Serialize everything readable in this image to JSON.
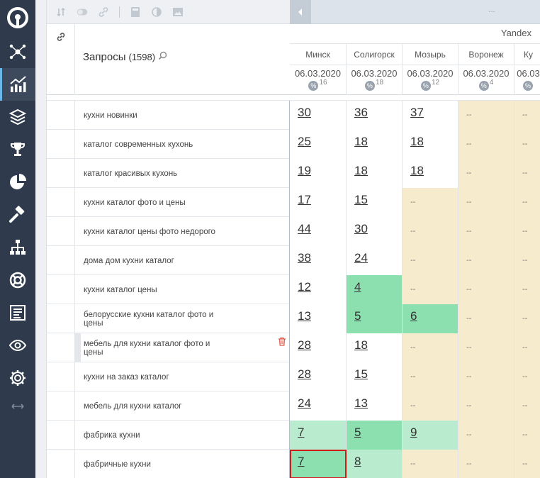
{
  "sidebar": {
    "items": [
      {
        "icon": "network-icon"
      },
      {
        "icon": "chart-icon",
        "active": true
      },
      {
        "icon": "layers-icon"
      },
      {
        "icon": "trophy-icon"
      },
      {
        "icon": "pie-icon"
      },
      {
        "icon": "hammer-icon"
      },
      {
        "icon": "sitemap-icon"
      },
      {
        "icon": "lifebuoy-icon"
      },
      {
        "icon": "report-icon"
      },
      {
        "icon": "eye-icon"
      },
      {
        "icon": "gear-icon"
      },
      {
        "icon": "expand-icon"
      }
    ]
  },
  "header": {
    "title": "Запросы",
    "count": "(1598)",
    "engine": "Yandex",
    "dots": "…"
  },
  "columns": [
    {
      "city": "Минск",
      "date": "06.03.2020",
      "pct": "16"
    },
    {
      "city": "Солигорск",
      "date": "06.03.2020",
      "pct": "18"
    },
    {
      "city": "Мозырь",
      "date": "06.03.2020",
      "pct": "12"
    },
    {
      "city": "Воронеж",
      "date": "06.03.2020",
      "pct": "4"
    },
    {
      "city": "Ку",
      "date": "06.03",
      "pct": ""
    }
  ],
  "rows": [
    {
      "query": "кухни новинки",
      "cells": [
        [
          "30",
          "w"
        ],
        [
          "36",
          "w"
        ],
        [
          "37",
          "w"
        ],
        [
          "--",
          "y"
        ],
        [
          "--",
          "y"
        ]
      ]
    },
    {
      "query": "каталог современных кухонь",
      "cells": [
        [
          "25",
          "w"
        ],
        [
          "18",
          "w"
        ],
        [
          "18",
          "w"
        ],
        [
          "--",
          "y"
        ],
        [
          "--",
          "y"
        ]
      ]
    },
    {
      "query": "каталог красивых кухонь",
      "cells": [
        [
          "19",
          "w"
        ],
        [
          "18",
          "w"
        ],
        [
          "18",
          "w"
        ],
        [
          "--",
          "y"
        ],
        [
          "--",
          "y"
        ]
      ]
    },
    {
      "query": "кухни каталог фото и цены",
      "cells": [
        [
          "17",
          "w"
        ],
        [
          "15",
          "w"
        ],
        [
          "--",
          "y"
        ],
        [
          "--",
          "y"
        ],
        [
          "--",
          "y"
        ]
      ]
    },
    {
      "query": "кухни каталог цены фото недорого",
      "cells": [
        [
          "44",
          "w"
        ],
        [
          "30",
          "w"
        ],
        [
          "--",
          "y"
        ],
        [
          "--",
          "y"
        ],
        [
          "--",
          "y"
        ]
      ]
    },
    {
      "query": "дома дом кухни каталог",
      "cells": [
        [
          "38",
          "w"
        ],
        [
          "24",
          "w"
        ],
        [
          "--",
          "y"
        ],
        [
          "--",
          "y"
        ],
        [
          "--",
          "y"
        ]
      ]
    },
    {
      "query": "кухни каталог цены",
      "cells": [
        [
          "12",
          "w"
        ],
        [
          "4",
          "g1"
        ],
        [
          "--",
          "y"
        ],
        [
          "--",
          "y"
        ],
        [
          "--",
          "y"
        ]
      ]
    },
    {
      "query": "белорусские кухни каталог фото и цены",
      "cells": [
        [
          "13",
          "w"
        ],
        [
          "5",
          "g1"
        ],
        [
          "6",
          "g1"
        ],
        [
          "--",
          "y"
        ],
        [
          "--",
          "y"
        ]
      ]
    },
    {
      "query": "мебель для кухни каталог фото и цены",
      "marked": true,
      "cells": [
        [
          "28",
          "w"
        ],
        [
          "18",
          "w"
        ],
        [
          "--",
          "y"
        ],
        [
          "--",
          "y"
        ],
        [
          "--",
          "y"
        ]
      ]
    },
    {
      "query": "кухни на заказ каталог",
      "cells": [
        [
          "28",
          "w"
        ],
        [
          "15",
          "w"
        ],
        [
          "--",
          "y"
        ],
        [
          "--",
          "y"
        ],
        [
          "--",
          "y"
        ]
      ]
    },
    {
      "query": "мебель для кухни каталог",
      "cells": [
        [
          "24",
          "w"
        ],
        [
          "13",
          "w"
        ],
        [
          "--",
          "y"
        ],
        [
          "--",
          "y"
        ],
        [
          "--",
          "y"
        ]
      ]
    },
    {
      "query": "фабрика кухни",
      "cells": [
        [
          "7",
          "g2"
        ],
        [
          "5",
          "g1"
        ],
        [
          "9",
          "g2"
        ],
        [
          "--",
          "y"
        ],
        [
          "--",
          "y"
        ]
      ]
    },
    {
      "query": "фабричные кухни",
      "cells": [
        [
          "7",
          "g1"
        ],
        [
          "8",
          "g2"
        ],
        [
          "--",
          "y"
        ],
        [
          "--",
          "y"
        ],
        [
          "--",
          "y"
        ]
      ],
      "selected": 0
    }
  ]
}
